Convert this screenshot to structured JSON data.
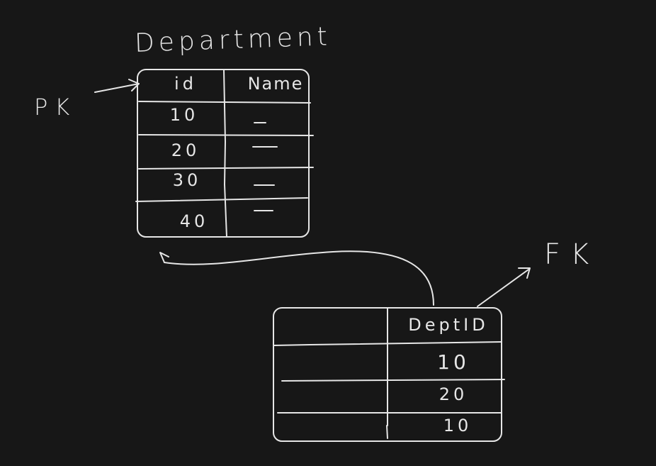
{
  "title": "Department",
  "pk_label": "PK",
  "fk_label": "FK",
  "department_table": {
    "headers": [
      "id",
      "Name"
    ],
    "rows": [
      {
        "id": "10",
        "name": "—"
      },
      {
        "id": "20",
        "name": "—"
      },
      {
        "id": "30",
        "name": "—"
      },
      {
        "id": "40",
        "name": "—"
      }
    ]
  },
  "employee_table": {
    "headers": [
      "",
      "DeptID"
    ],
    "rows": [
      {
        "col1": "",
        "dept_id": "10"
      },
      {
        "col1": "",
        "dept_id": "20"
      },
      {
        "col1": "",
        "dept_id": "10"
      }
    ]
  },
  "colors": {
    "background": "#171717",
    "ink": "#e6e6e6"
  }
}
